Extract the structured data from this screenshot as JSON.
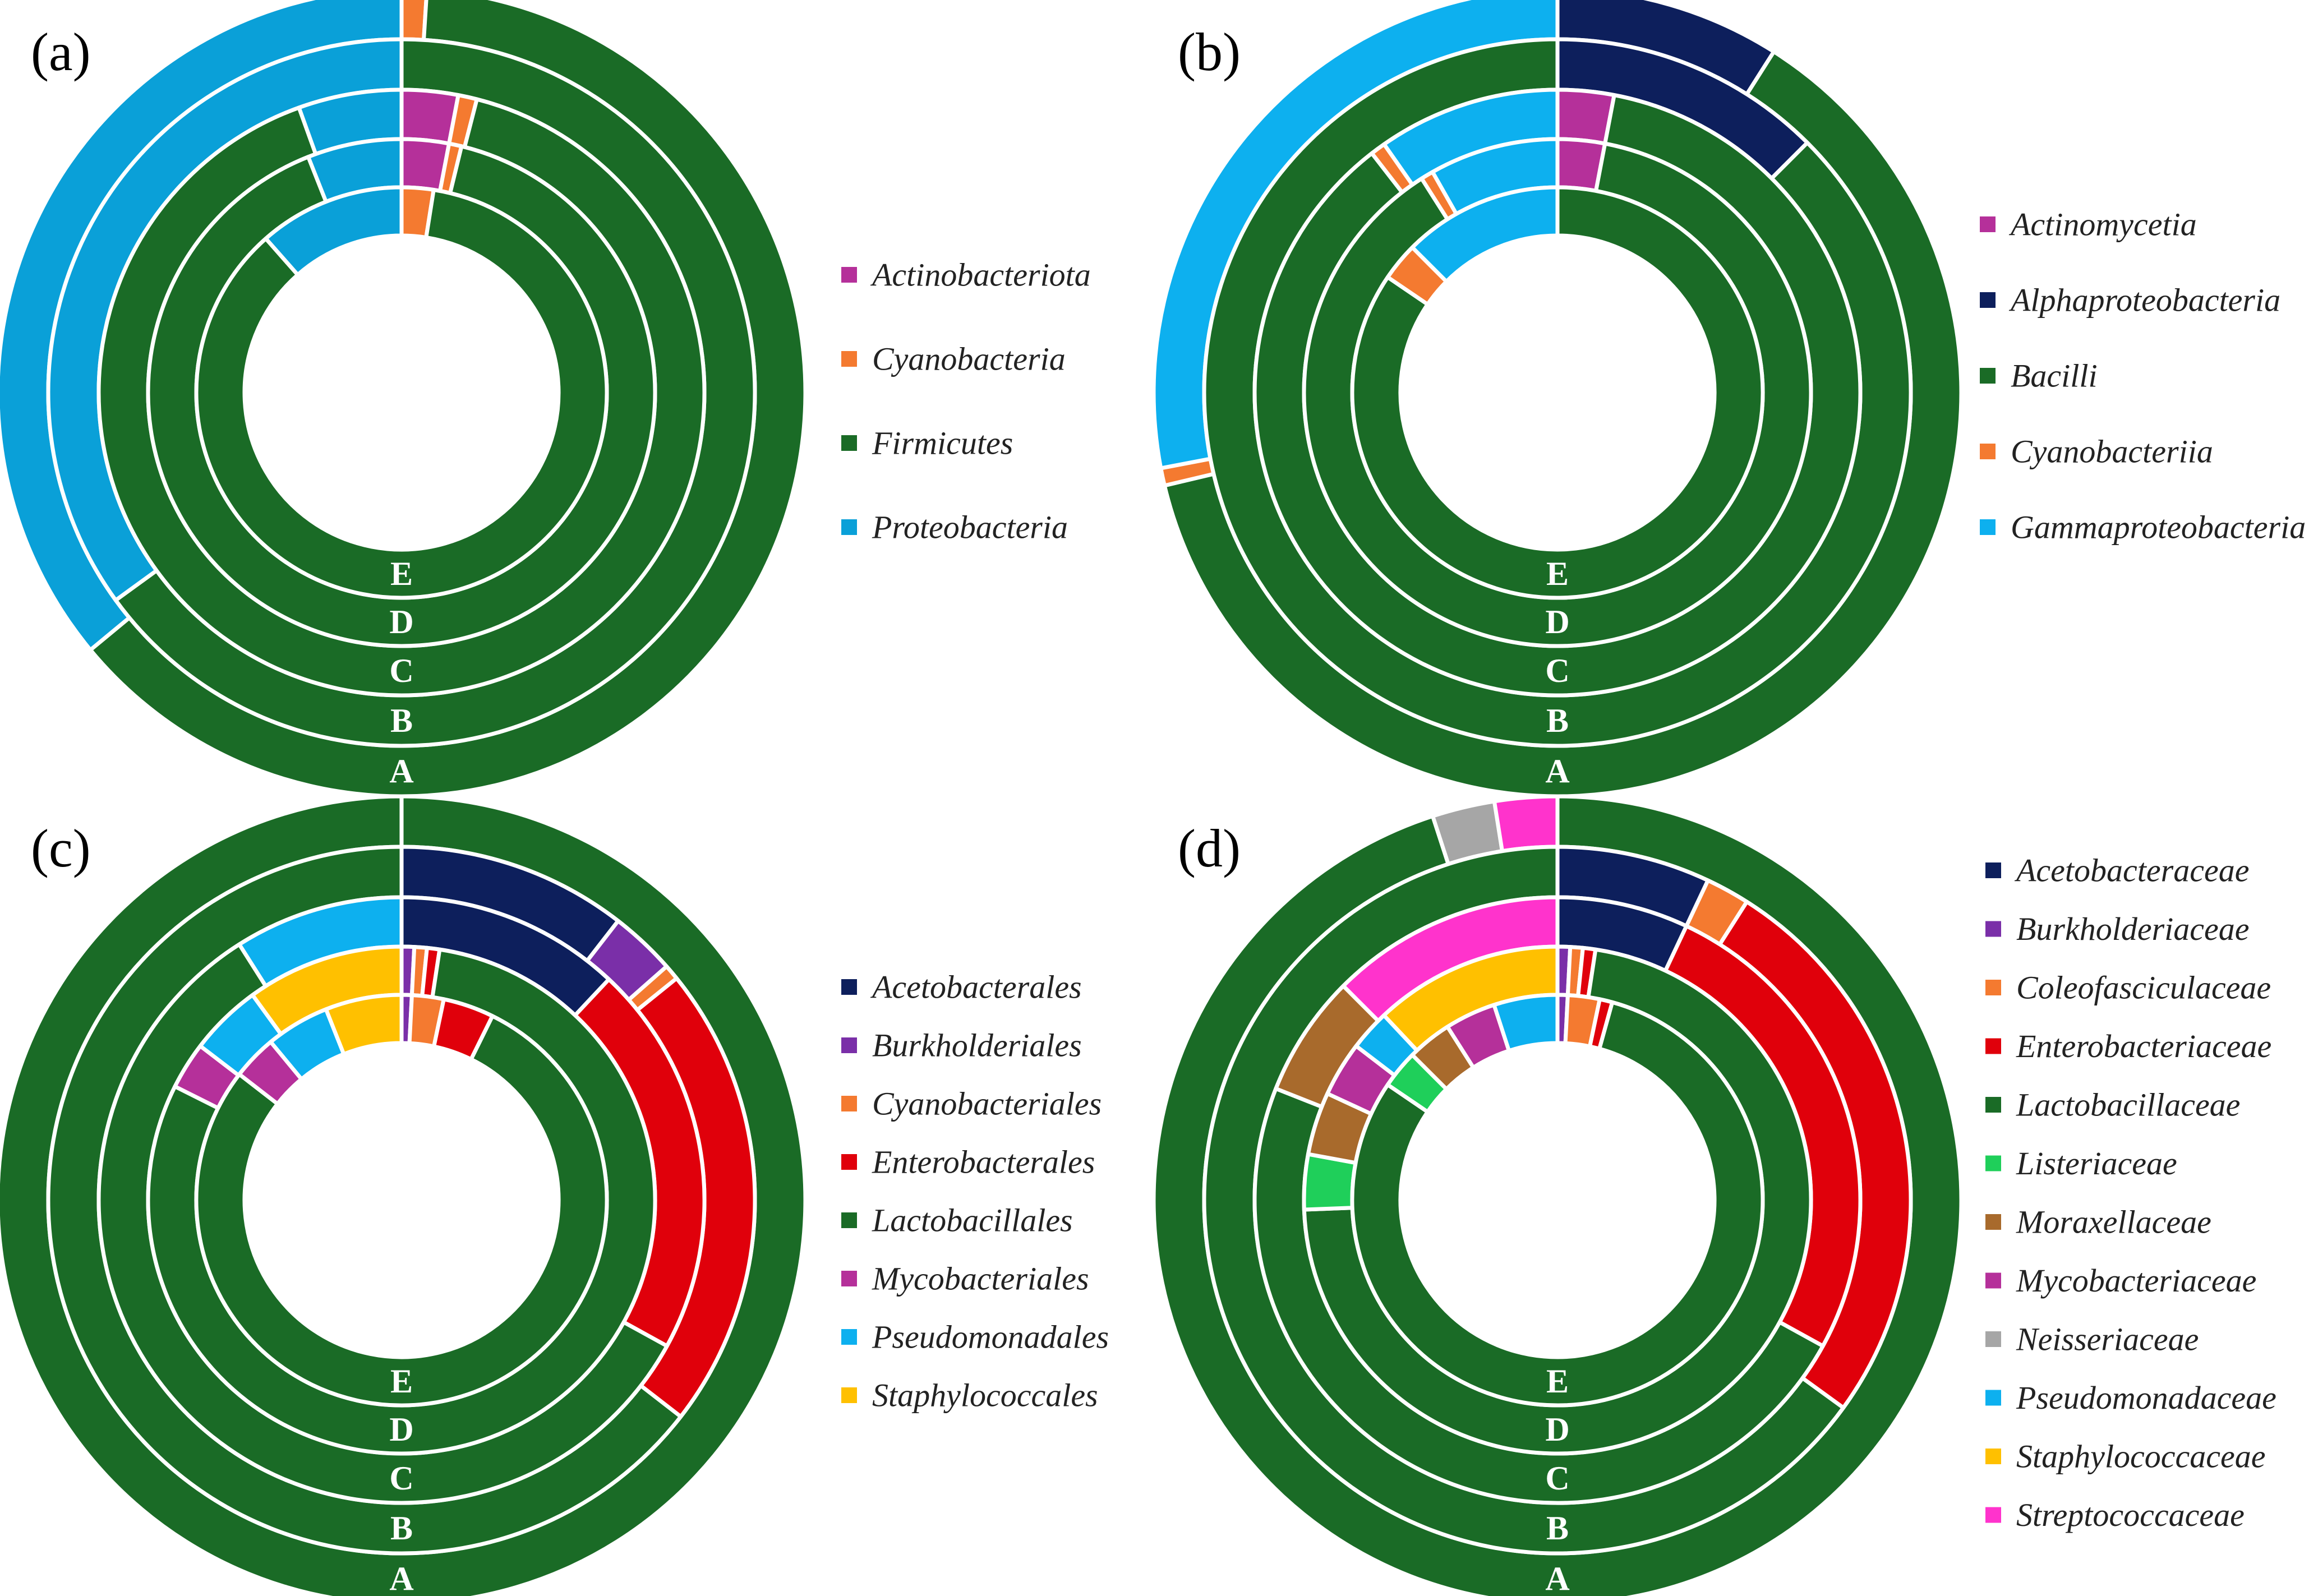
{
  "chart_data": [
    {
      "type": "pie",
      "panel_label": "(a)",
      "ring_labels": [
        "A",
        "B",
        "C",
        "D",
        "E"
      ],
      "legend": [
        "Actinobacteriota",
        "Cyanobacteria",
        "Firmicutes",
        "Proteobacteria"
      ],
      "colors": {
        "Actinobacteriota": "#b5309a",
        "Cyanobacteria": "#f47a30",
        "Firmicutes": "#1a6b26",
        "Proteobacteria": "#0aa0d8"
      },
      "rings": [
        {
          "name": "A",
          "slices": [
            {
              "label": "Cyanobacteria",
              "value": 1.0
            },
            {
              "label": "Firmicutes",
              "value": 63.0
            },
            {
              "label": "Proteobacteria",
              "value": 36.0
            }
          ]
        },
        {
          "name": "B",
          "slices": [
            {
              "label": "Firmicutes",
              "value": 65.0
            },
            {
              "label": "Proteobacteria",
              "value": 35.0
            }
          ]
        },
        {
          "name": "C",
          "slices": [
            {
              "label": "Actinobacteriota",
              "value": 3.0
            },
            {
              "label": "Cyanobacteria",
              "value": 1.0
            },
            {
              "label": "Firmicutes",
              "value": 90.5
            },
            {
              "label": "Proteobacteria",
              "value": 5.5
            }
          ]
        },
        {
          "name": "D",
          "slices": [
            {
              "label": "Actinobacteriota",
              "value": 3.0
            },
            {
              "label": "Cyanobacteria",
              "value": 0.8
            },
            {
              "label": "Firmicutes",
              "value": 90.2
            },
            {
              "label": "Proteobacteria",
              "value": 6.0
            }
          ]
        },
        {
          "name": "E",
          "slices": [
            {
              "label": "Cyanobacteria",
              "value": 2.5
            },
            {
              "label": "Firmicutes",
              "value": 86.0
            },
            {
              "label": "Proteobacteria",
              "value": 11.5
            }
          ]
        }
      ]
    },
    {
      "type": "pie",
      "panel_label": "(b)",
      "ring_labels": [
        "A",
        "B",
        "C",
        "D",
        "E"
      ],
      "legend": [
        "Actinomycetia",
        "Alphaproteobacteria",
        "Bacilli",
        "Cyanobacteriia",
        "Gammaproteobacteria"
      ],
      "colors": {
        "Actinomycetia": "#b5309a",
        "Alphaproteobacteria": "#0d1f5c",
        "Bacilli": "#1a6b26",
        "Cyanobacteriia": "#f47a30",
        "Gammaproteobacteria": "#0db0ef"
      },
      "rings": [
        {
          "name": "A",
          "slices": [
            {
              "label": "Alphaproteobacteria",
              "value": 9.0
            },
            {
              "label": "Bacilli",
              "value": 62.3
            },
            {
              "label": "Cyanobacteriia",
              "value": 0.7
            },
            {
              "label": "Gammaproteobacteria",
              "value": 28.0
            }
          ]
        },
        {
          "name": "B",
          "slices": [
            {
              "label": "Alphaproteobacteria",
              "value": 12.5
            },
            {
              "label": "Bacilli",
              "value": 87.5
            }
          ]
        },
        {
          "name": "C",
          "slices": [
            {
              "label": "Actinomycetia",
              "value": 3.0
            },
            {
              "label": "Bacilli",
              "value": 86.5
            },
            {
              "label": "Cyanobacteriia",
              "value": 0.8
            },
            {
              "label": "Gammaproteobacteria",
              "value": 9.7
            }
          ]
        },
        {
          "name": "D",
          "slices": [
            {
              "label": "Actinomycetia",
              "value": 3.0
            },
            {
              "label": "Bacilli",
              "value": 88.0
            },
            {
              "label": "Cyanobacteriia",
              "value": 0.8
            },
            {
              "label": "Gammaproteobacteria",
              "value": 8.2
            }
          ]
        },
        {
          "name": "E",
          "slices": [
            {
              "label": "Bacilli",
              "value": 84.5
            },
            {
              "label": "Cyanobacteriia",
              "value": 3.0
            },
            {
              "label": "Gammaproteobacteria",
              "value": 12.5
            }
          ]
        }
      ]
    },
    {
      "type": "pie",
      "panel_label": "(c)",
      "ring_labels": [
        "A",
        "B",
        "C",
        "D",
        "E"
      ],
      "legend": [
        "Acetobacterales",
        "Burkholderiales",
        "Cyanobacteriales",
        "Enterobacterales",
        "Lactobacillales",
        "Mycobacteriales",
        "Pseudomonadales",
        "Staphylococcales"
      ],
      "colors": {
        "Acetobacterales": "#0d1f5c",
        "Burkholderiales": "#7a2fa8",
        "Cyanobacteriales": "#f47a30",
        "Enterobacterales": "#e0000b",
        "Lactobacillales": "#1a6b26",
        "Mycobacteriales": "#b5309a",
        "Pseudomonadales": "#0db0ef",
        "Staphylococcales": "#ffc000"
      },
      "rings": [
        {
          "name": "A",
          "slices": [
            {
              "label": "Lactobacillales",
              "value": 100
            }
          ]
        },
        {
          "name": "B",
          "slices": [
            {
              "label": "Acetobacterales",
              "value": 10.5
            },
            {
              "label": "Burkholderiales",
              "value": 3.0
            },
            {
              "label": "Cyanobacteriales",
              "value": 0.7
            },
            {
              "label": "Enterobacterales",
              "value": 21.3
            },
            {
              "label": "Lactobacillales",
              "value": 64.5
            }
          ]
        },
        {
          "name": "C",
          "slices": [
            {
              "label": "Acetobacterales",
              "value": 12.0
            },
            {
              "label": "Enterobacterales",
              "value": 21.0
            },
            {
              "label": "Lactobacillales",
              "value": 58.0
            },
            {
              "label": "Pseudomonadales",
              "value": 9.0
            }
          ]
        },
        {
          "name": "D",
          "slices": [
            {
              "label": "Burkholderiales",
              "value": 0.8
            },
            {
              "label": "Cyanobacteriales",
              "value": 0.8
            },
            {
              "label": "Enterobacterales",
              "value": 0.8
            },
            {
              "label": "Lactobacillales",
              "value": 80.0
            },
            {
              "label": "Mycobacteriales",
              "value": 3.0
            },
            {
              "label": "Pseudomonadales",
              "value": 4.6
            },
            {
              "label": "Staphylococcales",
              "value": 10.0
            }
          ]
        },
        {
          "name": "E",
          "slices": [
            {
              "label": "Burkholderiales",
              "value": 0.8
            },
            {
              "label": "Cyanobacteriales",
              "value": 2.5
            },
            {
              "label": "Enterobacterales",
              "value": 4.0
            },
            {
              "label": "Lactobacillales",
              "value": 78.2
            },
            {
              "label": "Mycobacteriales",
              "value": 3.5
            },
            {
              "label": "Pseudomonadales",
              "value": 5.0
            },
            {
              "label": "Staphylococcales",
              "value": 6.0
            }
          ]
        }
      ]
    },
    {
      "type": "pie",
      "panel_label": "(d)",
      "ring_labels": [
        "A",
        "B",
        "C",
        "D",
        "E"
      ],
      "legend": [
        "Acetobacteraceae",
        "Burkholderiaceae",
        "Coleofasciculaceae",
        "Enterobacteriaceae",
        "Lactobacillaceae",
        "Listeriaceae",
        "Moraxellaceae",
        "Mycobacteriaceae",
        "Neisseriaceae",
        "Pseudomonadaceae",
        "Staphylococcaceae",
        "Streptococcaceae"
      ],
      "colors": {
        "Acetobacteraceae": "#0d1f5c",
        "Burkholderiaceae": "#7a2fa8",
        "Coleofasciculaceae": "#f47a30",
        "Enterobacteriaceae": "#e0000b",
        "Lactobacillaceae": "#1a6b26",
        "Listeriaceae": "#1fcf5a",
        "Moraxellaceae": "#a86a2c",
        "Mycobacteriaceae": "#b5309a",
        "Neisseriaceae": "#a6a6a6",
        "Pseudomonadaceae": "#0db0ef",
        "Staphylococcaceae": "#ffc000",
        "Streptococcaceae": "#ff33cc"
      },
      "rings": [
        {
          "name": "A",
          "slices": [
            {
              "label": "Lactobacillaceae",
              "value": 95.0
            },
            {
              "label": "Neisseriaceae",
              "value": 2.5
            },
            {
              "label": "Streptococcaceae",
              "value": 2.5
            }
          ]
        },
        {
          "name": "B",
          "slices": [
            {
              "label": "Acetobacteraceae",
              "value": 7.0
            },
            {
              "label": "Coleofasciculaceae",
              "value": 2.0
            },
            {
              "label": "Enterobacteriaceae",
              "value": 26.0
            },
            {
              "label": "Lactobacillaceae",
              "value": 65.0
            }
          ]
        },
        {
          "name": "C",
          "slices": [
            {
              "label": "Acetobacteraceae",
              "value": 7.0
            },
            {
              "label": "Enterobacteriaceae",
              "value": 26.0
            },
            {
              "label": "Lactobacillaceae",
              "value": 48.0
            },
            {
              "label": "Moraxellaceae",
              "value": 6.5
            },
            {
              "label": "Streptococcaceae",
              "value": 12.5
            }
          ]
        },
        {
          "name": "D",
          "slices": [
            {
              "label": "Burkholderiaceae",
              "value": 0.8
            },
            {
              "label": "Coleofasciculaceae",
              "value": 0.8
            },
            {
              "label": "Enterobacteriaceae",
              "value": 0.8
            },
            {
              "label": "Lactobacillaceae",
              "value": 72.0
            },
            {
              "label": "Listeriaceae",
              "value": 3.5
            },
            {
              "label": "Moraxellaceae",
              "value": 4.0
            },
            {
              "label": "Mycobacteriaceae",
              "value": 3.5
            },
            {
              "label": "Pseudomonadaceae",
              "value": 2.6
            },
            {
              "label": "Staphylococcaceae",
              "value": 12.0
            }
          ]
        },
        {
          "name": "E",
          "slices": [
            {
              "label": "Burkholderiaceae",
              "value": 0.8
            },
            {
              "label": "Coleofasciculaceae",
              "value": 2.5
            },
            {
              "label": "Enterobacteriaceae",
              "value": 1.0
            },
            {
              "label": "Lactobacillaceae",
              "value": 80.2
            },
            {
              "label": "Listeriaceae",
              "value": 3.0
            },
            {
              "label": "Moraxellaceae",
              "value": 3.5
            },
            {
              "label": "Mycobacteriaceae",
              "value": 4.0
            },
            {
              "label": "Pseudomonadaceae",
              "value": 5.0
            }
          ]
        }
      ]
    }
  ]
}
